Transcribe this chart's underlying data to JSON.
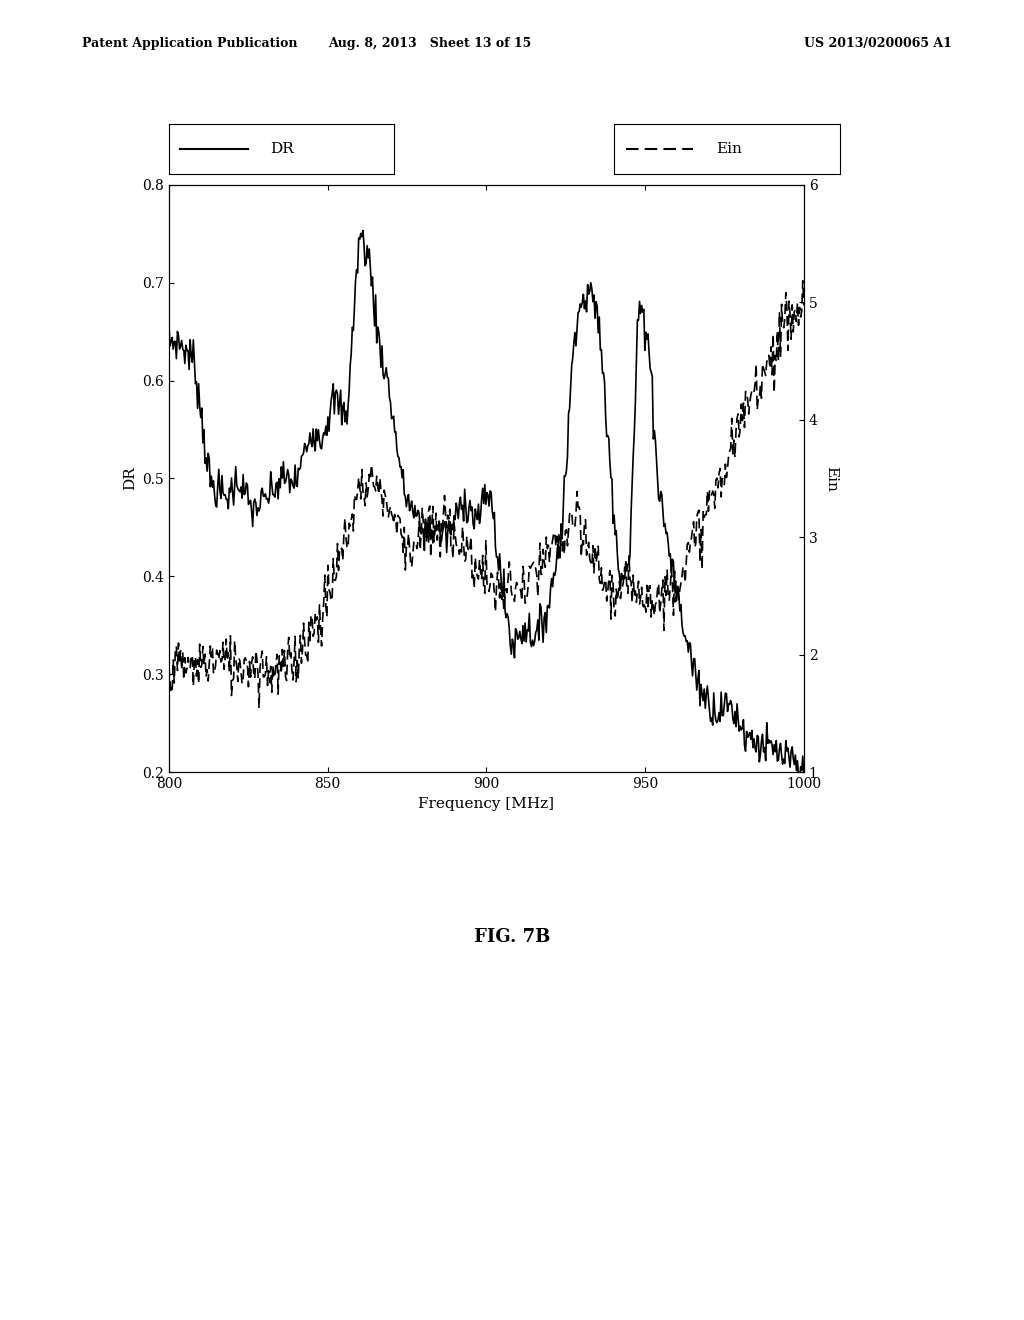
{
  "title": "FIG. 7B",
  "xlabel": "Frequency [MHz]",
  "ylabel_left": "DR",
  "ylabel_right": "Ein",
  "xmin": 800,
  "xmax": 1000,
  "ylim_left": [
    0.2,
    0.8
  ],
  "ylim_right": [
    1,
    6
  ],
  "yticks_left": [
    0.2,
    0.3,
    0.4,
    0.5,
    0.6,
    0.7,
    0.8
  ],
  "yticks_right": [
    1,
    2,
    3,
    4,
    5,
    6
  ],
  "xticks": [
    800,
    850,
    900,
    950,
    1000
  ],
  "header_left": "Patent Application Publication",
  "header_center": "Aug. 8, 2013   Sheet 13 of 15",
  "header_right": "US 2013/0200065 A1",
  "background_color": "#ffffff",
  "line_color": "#000000"
}
